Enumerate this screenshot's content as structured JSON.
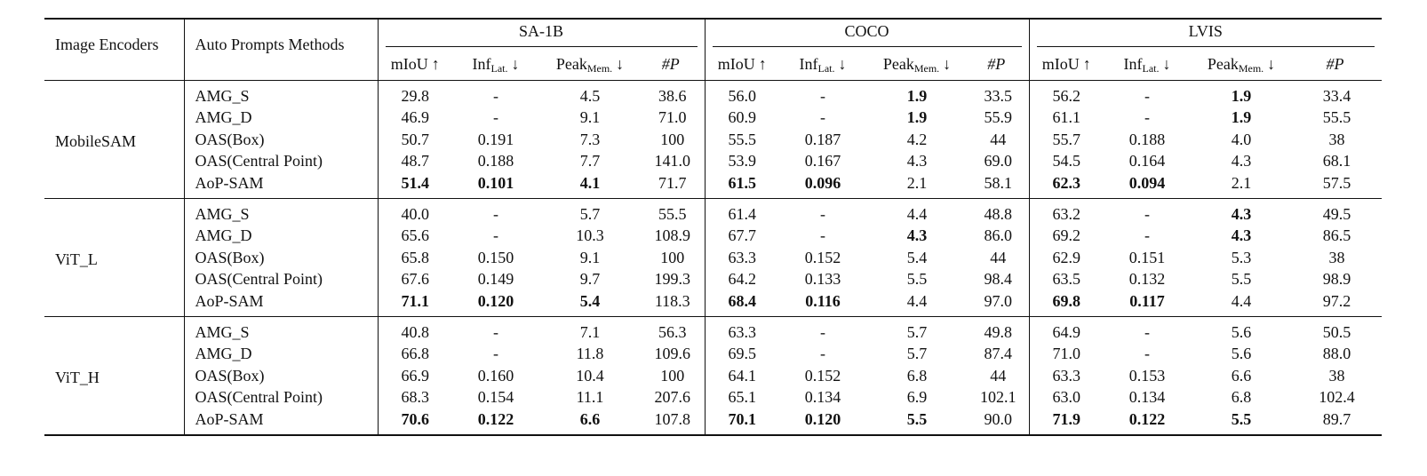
{
  "header": {
    "col_encoder": "Image Encoders",
    "col_method": "Auto Prompts Methods",
    "datasets": [
      "SA-1B",
      "COCO",
      "LVIS"
    ],
    "metrics": [
      {
        "main": "mIoU",
        "sub": "",
        "arrow": "↑"
      },
      {
        "main": "Inf",
        "sub": "Lat.",
        "arrow": "↓"
      },
      {
        "main": "Peak",
        "sub": "Mem.",
        "arrow": "↓"
      },
      {
        "main": "#P",
        "sub": "",
        "arrow": ""
      }
    ]
  },
  "groups": [
    {
      "encoder": "MobileSAM",
      "rows": [
        {
          "method": "AMG_S",
          "values": [
            "29.8",
            "-",
            "4.5",
            "38.6",
            "56.0",
            "-",
            "1.9",
            "33.5",
            "56.2",
            "-",
            "1.9",
            "33.4"
          ],
          "bold": [
            6,
            10
          ]
        },
        {
          "method": "AMG_D",
          "values": [
            "46.9",
            "-",
            "9.1",
            "71.0",
            "60.9",
            "-",
            "1.9",
            "55.9",
            "61.1",
            "-",
            "1.9",
            "55.5"
          ],
          "bold": [
            6,
            10
          ]
        },
        {
          "method": "OAS(Box)",
          "values": [
            "50.7",
            "0.191",
            "7.3",
            "100",
            "55.5",
            "0.187",
            "4.2",
            "44",
            "55.7",
            "0.188",
            "4.0",
            "38"
          ],
          "bold": []
        },
        {
          "method": "OAS(Central Point)",
          "values": [
            "48.7",
            "0.188",
            "7.7",
            "141.0",
            "53.9",
            "0.167",
            "4.3",
            "69.0",
            "54.5",
            "0.164",
            "4.3",
            "68.1"
          ],
          "bold": []
        },
        {
          "method": "AoP-SAM",
          "values": [
            "51.4",
            "0.101",
            "4.1",
            "71.7",
            "61.5",
            "0.096",
            "2.1",
            "58.1",
            "62.3",
            "0.094",
            "2.1",
            "57.5"
          ],
          "bold": [
            0,
            1,
            2,
            4,
            5,
            8,
            9
          ]
        }
      ]
    },
    {
      "encoder": "ViT_L",
      "rows": [
        {
          "method": "AMG_S",
          "values": [
            "40.0",
            "-",
            "5.7",
            "55.5",
            "61.4",
            "-",
            "4.4",
            "48.8",
            "63.2",
            "-",
            "4.3",
            "49.5"
          ],
          "bold": [
            10
          ]
        },
        {
          "method": "AMG_D",
          "values": [
            "65.6",
            "-",
            "10.3",
            "108.9",
            "67.7",
            "-",
            "4.3",
            "86.0",
            "69.2",
            "-",
            "4.3",
            "86.5"
          ],
          "bold": [
            6,
            10
          ]
        },
        {
          "method": "OAS(Box)",
          "values": [
            "65.8",
            "0.150",
            "9.1",
            "100",
            "63.3",
            "0.152",
            "5.4",
            "44",
            "62.9",
            "0.151",
            "5.3",
            "38"
          ],
          "bold": []
        },
        {
          "method": "OAS(Central Point)",
          "values": [
            "67.6",
            "0.149",
            "9.7",
            "199.3",
            "64.2",
            "0.133",
            "5.5",
            "98.4",
            "63.5",
            "0.132",
            "5.5",
            "98.9"
          ],
          "bold": []
        },
        {
          "method": "AoP-SAM",
          "values": [
            "71.1",
            "0.120",
            "5.4",
            "118.3",
            "68.4",
            "0.116",
            "4.4",
            "97.0",
            "69.8",
            "0.117",
            "4.4",
            "97.2"
          ],
          "bold": [
            0,
            1,
            2,
            4,
            5,
            8,
            9
          ]
        }
      ]
    },
    {
      "encoder": "ViT_H",
      "rows": [
        {
          "method": "AMG_S",
          "values": [
            "40.8",
            "-",
            "7.1",
            "56.3",
            "63.3",
            "-",
            "5.7",
            "49.8",
            "64.9",
            "-",
            "5.6",
            "50.5"
          ],
          "bold": []
        },
        {
          "method": "AMG_D",
          "values": [
            "66.8",
            "-",
            "11.8",
            "109.6",
            "69.5",
            "-",
            "5.7",
            "87.4",
            "71.0",
            "-",
            "5.6",
            "88.0"
          ],
          "bold": []
        },
        {
          "method": "OAS(Box)",
          "values": [
            "66.9",
            "0.160",
            "10.4",
            "100",
            "64.1",
            "0.152",
            "6.8",
            "44",
            "63.3",
            "0.153",
            "6.6",
            "38"
          ],
          "bold": []
        },
        {
          "method": "OAS(Central Point)",
          "values": [
            "68.3",
            "0.154",
            "11.1",
            "207.6",
            "65.1",
            "0.134",
            "6.9",
            "102.1",
            "63.0",
            "0.134",
            "6.8",
            "102.4"
          ],
          "bold": []
        },
        {
          "method": "AoP-SAM",
          "values": [
            "70.6",
            "0.122",
            "6.6",
            "107.8",
            "70.1",
            "0.120",
            "5.5",
            "90.0",
            "71.9",
            "0.122",
            "5.5",
            "89.7"
          ],
          "bold": [
            0,
            1,
            2,
            4,
            5,
            6,
            8,
            9,
            10
          ]
        }
      ]
    }
  ]
}
